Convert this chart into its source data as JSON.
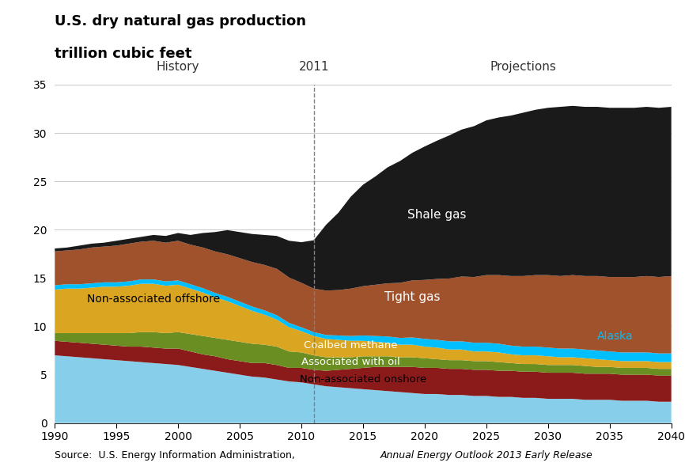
{
  "title_line1": "U.S. dry natural gas production",
  "title_line2": "trillion cubic feet",
  "source_normal": "Source:  U.S. Energy Information Administration, ",
  "source_italic": "Annual Energy Outlook 2013 Early Release",
  "history_label": "History",
  "projections_label": "Projections",
  "year_marker": 2011,
  "xlim": [
    1990,
    2040
  ],
  "ylim": [
    0,
    35
  ],
  "yticks": [
    0,
    5,
    10,
    15,
    20,
    25,
    30,
    35
  ],
  "xticks": [
    1990,
    1995,
    2000,
    2005,
    2010,
    2015,
    2020,
    2025,
    2030,
    2035,
    2040
  ],
  "colors": {
    "non_associated_onshore": "#87CEEB",
    "associated_with_oil": "#8B1A1A",
    "coalbed_methane": "#6B8E23",
    "non_associated_offshore": "#DAA520",
    "alaska": "#00BFFF",
    "tight_gas": "#A0522D",
    "shale_gas": "#1A1A1A"
  },
  "labels": {
    "non_associated_onshore": "Non-associated onshore",
    "associated_with_oil": "Associated with oil",
    "coalbed_methane": "Coalbed methane",
    "non_associated_offshore": "Non-associated offshore",
    "alaska": "Alaska",
    "tight_gas": "Tight gas",
    "shale_gas": "Shale gas"
  },
  "years": [
    1990,
    1991,
    1992,
    1993,
    1994,
    1995,
    1996,
    1997,
    1998,
    1999,
    2000,
    2001,
    2002,
    2003,
    2004,
    2005,
    2006,
    2007,
    2008,
    2009,
    2010,
    2011,
    2012,
    2013,
    2014,
    2015,
    2016,
    2017,
    2018,
    2019,
    2020,
    2021,
    2022,
    2023,
    2024,
    2025,
    2026,
    2027,
    2028,
    2029,
    2030,
    2031,
    2032,
    2033,
    2034,
    2035,
    2036,
    2037,
    2038,
    2039,
    2040
  ],
  "non_associated_onshore": [
    7.0,
    6.9,
    6.8,
    6.7,
    6.6,
    6.5,
    6.4,
    6.3,
    6.2,
    6.1,
    6.0,
    5.8,
    5.6,
    5.4,
    5.2,
    5.0,
    4.8,
    4.7,
    4.5,
    4.3,
    4.2,
    4.0,
    3.8,
    3.7,
    3.6,
    3.5,
    3.4,
    3.3,
    3.2,
    3.1,
    3.0,
    3.0,
    2.9,
    2.9,
    2.8,
    2.8,
    2.7,
    2.7,
    2.6,
    2.6,
    2.5,
    2.5,
    2.5,
    2.4,
    2.4,
    2.4,
    2.3,
    2.3,
    2.3,
    2.2,
    2.2
  ],
  "associated_with_oil": [
    1.5,
    1.5,
    1.5,
    1.5,
    1.5,
    1.5,
    1.5,
    1.6,
    1.6,
    1.6,
    1.7,
    1.6,
    1.5,
    1.5,
    1.4,
    1.4,
    1.4,
    1.5,
    1.5,
    1.4,
    1.5,
    1.5,
    1.6,
    1.8,
    2.0,
    2.2,
    2.4,
    2.5,
    2.6,
    2.7,
    2.7,
    2.7,
    2.7,
    2.7,
    2.7,
    2.7,
    2.7,
    2.7,
    2.7,
    2.7,
    2.7,
    2.7,
    2.7,
    2.7,
    2.7,
    2.7,
    2.7,
    2.7,
    2.7,
    2.7,
    2.7
  ],
  "coalbed_methane": [
    0.8,
    0.9,
    1.0,
    1.1,
    1.2,
    1.3,
    1.4,
    1.5,
    1.6,
    1.6,
    1.7,
    1.8,
    1.9,
    1.9,
    2.0,
    2.0,
    2.0,
    1.9,
    1.9,
    1.7,
    1.6,
    1.5,
    1.4,
    1.3,
    1.2,
    1.2,
    1.1,
    1.1,
    1.0,
    1.0,
    1.0,
    0.9,
    0.9,
    0.9,
    0.9,
    0.9,
    0.9,
    0.8,
    0.8,
    0.8,
    0.8,
    0.8,
    0.8,
    0.8,
    0.7,
    0.7,
    0.7,
    0.7,
    0.7,
    0.7,
    0.7
  ],
  "non_associated_offshore": [
    4.5,
    4.6,
    4.6,
    4.7,
    4.8,
    4.8,
    4.9,
    5.0,
    5.0,
    4.9,
    4.9,
    4.7,
    4.5,
    4.2,
    4.0,
    3.7,
    3.4,
    3.1,
    2.8,
    2.5,
    2.2,
    2.0,
    1.9,
    1.8,
    1.7,
    1.6,
    1.5,
    1.4,
    1.3,
    1.3,
    1.2,
    1.2,
    1.1,
    1.1,
    1.0,
    1.0,
    1.0,
    0.9,
    0.9,
    0.9,
    0.9,
    0.8,
    0.8,
    0.8,
    0.8,
    0.7,
    0.7,
    0.7,
    0.7,
    0.7,
    0.7
  ],
  "alaska": [
    0.45,
    0.45,
    0.45,
    0.45,
    0.45,
    0.45,
    0.45,
    0.45,
    0.45,
    0.45,
    0.45,
    0.45,
    0.45,
    0.45,
    0.45,
    0.45,
    0.45,
    0.45,
    0.45,
    0.45,
    0.4,
    0.4,
    0.4,
    0.45,
    0.5,
    0.55,
    0.6,
    0.65,
    0.7,
    0.75,
    0.8,
    0.8,
    0.85,
    0.85,
    0.9,
    0.9,
    0.9,
    0.9,
    0.9,
    0.9,
    0.9,
    0.9,
    0.9,
    0.9,
    0.9,
    0.9,
    0.9,
    0.9,
    0.9,
    0.9,
    0.9
  ],
  "tight_gas": [
    3.5,
    3.5,
    3.6,
    3.7,
    3.7,
    3.8,
    3.9,
    3.9,
    4.0,
    4.0,
    4.1,
    4.1,
    4.2,
    4.3,
    4.4,
    4.5,
    4.6,
    4.7,
    4.8,
    4.7,
    4.6,
    4.5,
    4.6,
    4.7,
    4.9,
    5.1,
    5.3,
    5.5,
    5.7,
    5.9,
    6.1,
    6.3,
    6.5,
    6.7,
    6.8,
    7.0,
    7.1,
    7.2,
    7.3,
    7.4,
    7.5,
    7.5,
    7.6,
    7.6,
    7.7,
    7.7,
    7.8,
    7.8,
    7.9,
    7.9,
    8.0
  ],
  "shale_gas": [
    0.3,
    0.3,
    0.4,
    0.4,
    0.4,
    0.5,
    0.5,
    0.5,
    0.6,
    0.7,
    0.8,
    1.0,
    1.5,
    2.0,
    2.5,
    2.7,
    2.9,
    3.1,
    3.4,
    3.8,
    4.2,
    5.0,
    6.8,
    8.0,
    9.5,
    10.5,
    11.2,
    12.0,
    12.6,
    13.2,
    13.8,
    14.3,
    14.8,
    15.2,
    15.6,
    16.0,
    16.3,
    16.6,
    16.9,
    17.1,
    17.3,
    17.5,
    17.5,
    17.5,
    17.5,
    17.5,
    17.5,
    17.5,
    17.5,
    17.5,
    17.5
  ]
}
